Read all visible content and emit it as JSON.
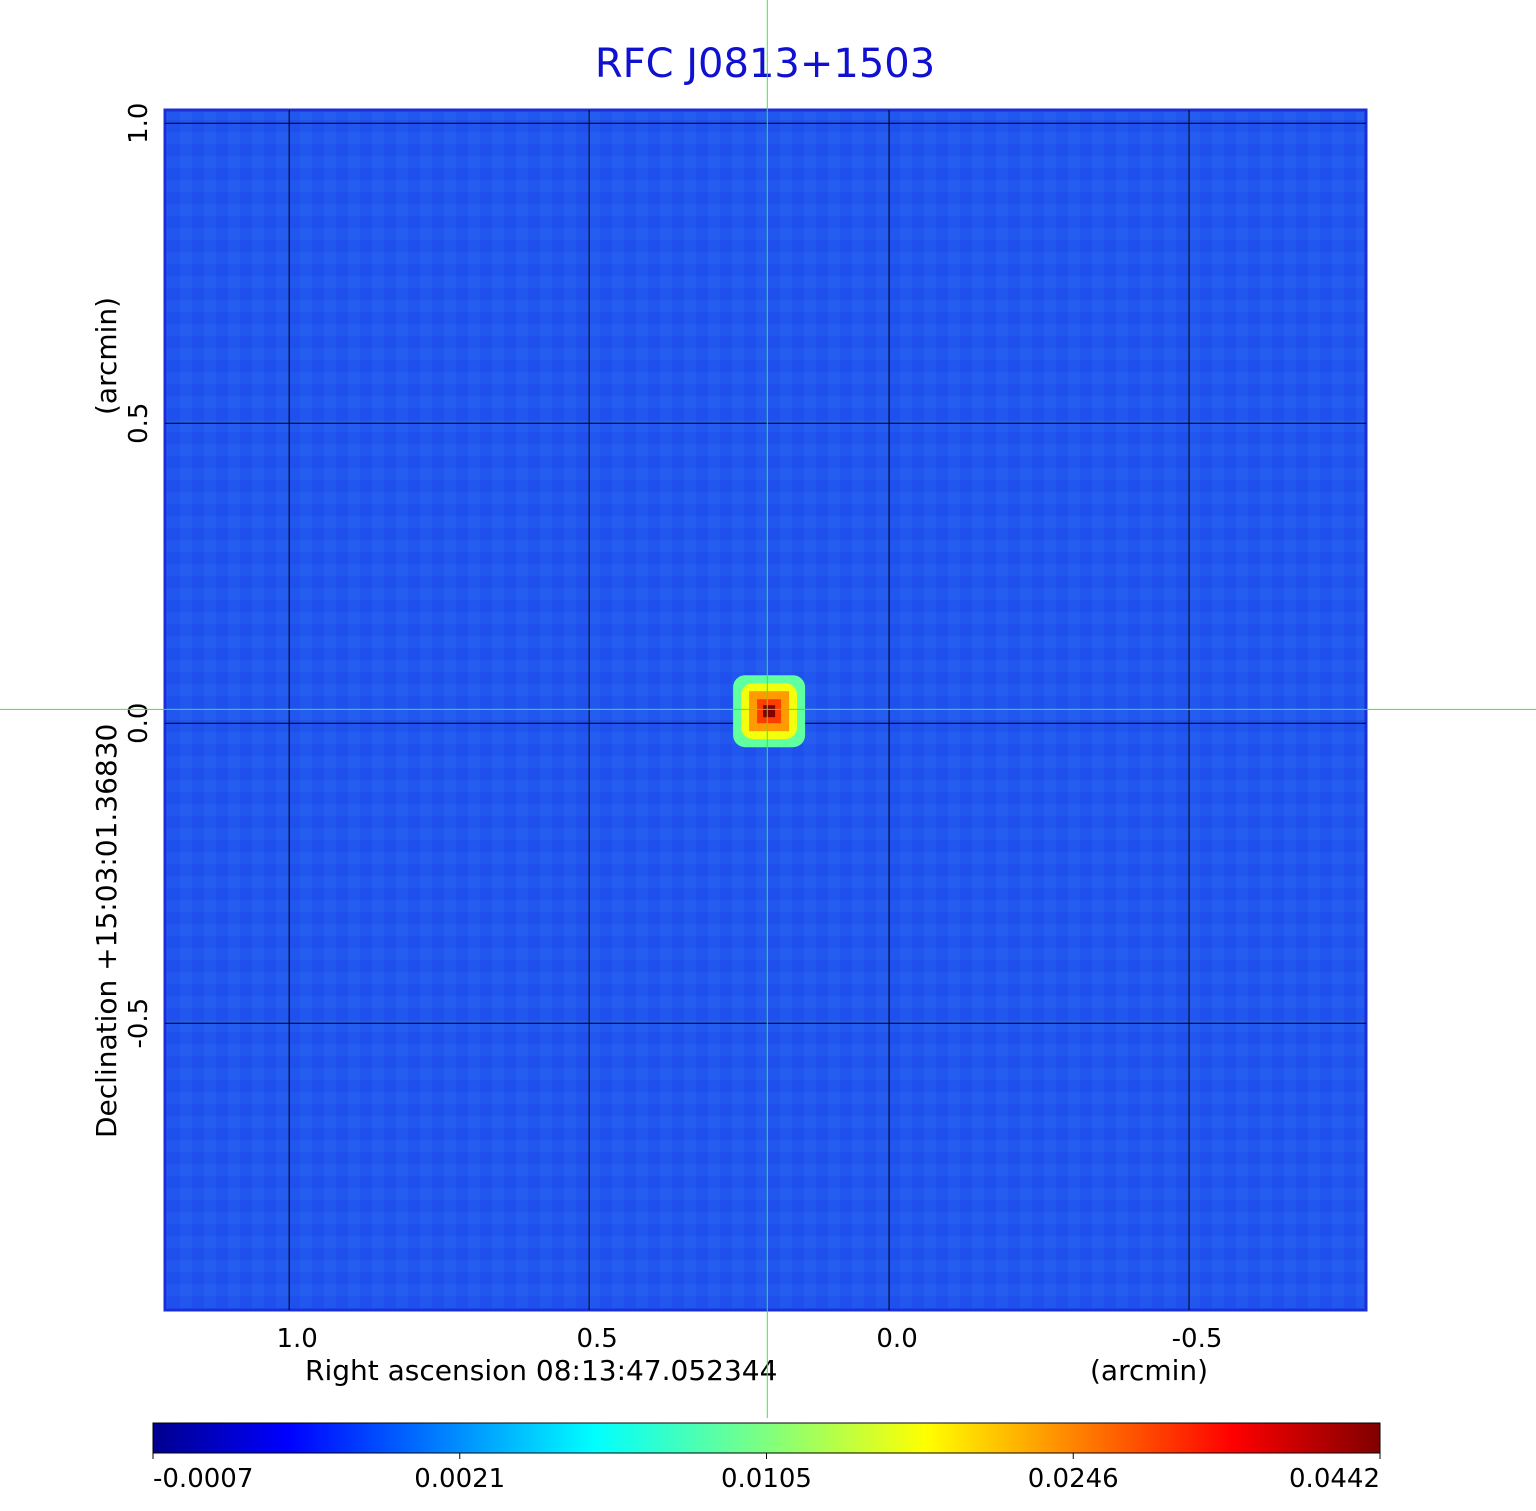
{
  "chart_data": {
    "type": "image",
    "title": "RFC J0813+1503",
    "xlabel": "Right ascension  08:13:47.052344",
    "xunit": "(arcmin)",
    "ylabel": "Declination  +15:03:01.36830",
    "yunit": "(arcmin)",
    "xlim": [
      1.207,
      -0.795
    ],
    "ylim": [
      -0.978,
      1.022
    ],
    "xticks": [
      {
        "value": 1,
        "label": "1.0"
      },
      0.5,
      {
        "value": 0,
        "label": "0.0"
      },
      -0.5
    ],
    "yticks": [
      {
        "value": 1,
        "label": "1.0"
      },
      0.5,
      {
        "value": 0,
        "label": "0.0"
      },
      -0.5
    ],
    "grid": true,
    "colormap": "jet",
    "clim": [
      -0.0007,
      0.0442
    ],
    "cticks": [
      -0.0007,
      0.0021,
      0.0105,
      0.0246,
      0.0442
    ],
    "crosshair": {
      "x": 0.203,
      "y": 0.023
    },
    "sources": [
      {
        "x": 0.2,
        "y": 0.02,
        "value": 0.0442
      }
    ]
  }
}
